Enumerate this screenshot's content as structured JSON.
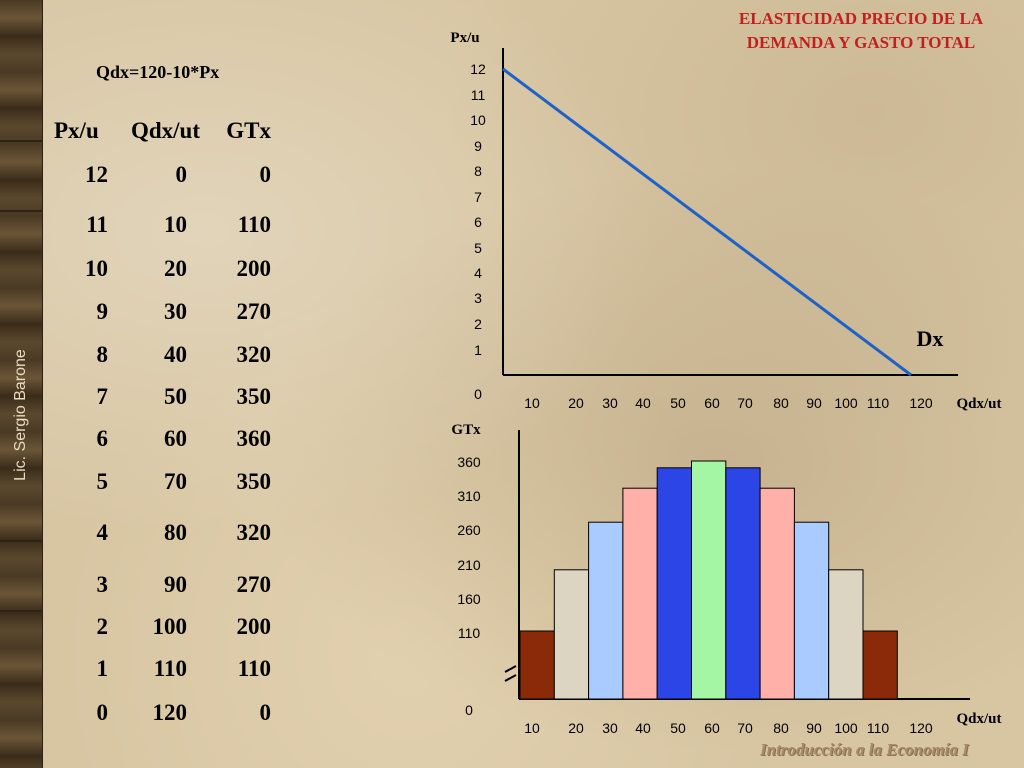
{
  "title_line1": "ELASTICIDAD PRECIO DE LA",
  "title_line2": "DEMANDA Y GASTO TOTAL",
  "formula": "Qdx=120-10*Px",
  "author": "Lic. Sergio Barone",
  "footer": "Introducción a la Economía I",
  "table": {
    "headers": [
      "Px/u",
      "Qdx/ut",
      "GTx"
    ],
    "rows": [
      [
        "12",
        "0",
        "0"
      ],
      [
        "11",
        "10",
        "110"
      ],
      [
        "10",
        "20",
        "200"
      ],
      [
        "9",
        "30",
        "270"
      ],
      [
        "8",
        "40",
        "320"
      ],
      [
        "7",
        "50",
        "350"
      ],
      [
        "6",
        "60",
        "360"
      ],
      [
        "5",
        "70",
        "350"
      ],
      [
        "4",
        "80",
        "320"
      ],
      [
        "3",
        "90",
        "270"
      ],
      [
        "2",
        "100",
        "200"
      ],
      [
        "1",
        "110",
        "110"
      ],
      [
        "0",
        "120",
        "0"
      ]
    ]
  },
  "chart_data": [
    {
      "type": "line",
      "ylabel": "Px/u",
      "xlabel": "Qdx/ut",
      "series_label": "Dx",
      "x_ticks": [
        "10",
        "20",
        "30",
        "40",
        "50",
        "60",
        "70",
        "80",
        "90",
        "100",
        "110",
        "120"
      ],
      "y_ticks": [
        "0",
        "1",
        "2",
        "3",
        "4",
        "5",
        "6",
        "7",
        "8",
        "9",
        "10",
        "11",
        "12"
      ],
      "xlim": [
        0,
        120
      ],
      "ylim": [
        0,
        12
      ],
      "line_color": "#1e62c8",
      "x": [
        0,
        120
      ],
      "y": [
        12,
        0
      ]
    },
    {
      "type": "bar",
      "ylabel": "GTx",
      "xlabel": "Qdx/ut",
      "x_ticks": [
        "10",
        "20",
        "30",
        "40",
        "50",
        "60",
        "70",
        "80",
        "90",
        "100",
        "110",
        "120"
      ],
      "y_ticks": [
        "0",
        "110",
        "160",
        "210",
        "260",
        "310",
        "360"
      ],
      "axis_break": true,
      "categories": [
        10,
        20,
        30,
        40,
        50,
        60,
        70,
        80,
        90,
        100,
        110
      ],
      "values": [
        110,
        200,
        270,
        320,
        350,
        360,
        350,
        320,
        270,
        200,
        110
      ],
      "colors": [
        "#8b2a08",
        "#dcd5c2",
        "#a9cbff",
        "#ffb0a8",
        "#2c45e6",
        "#a4f5a4",
        "#2c45e6",
        "#ffb0a8",
        "#a9cbff",
        "#dcd5c2",
        "#8b2a08"
      ]
    }
  ]
}
